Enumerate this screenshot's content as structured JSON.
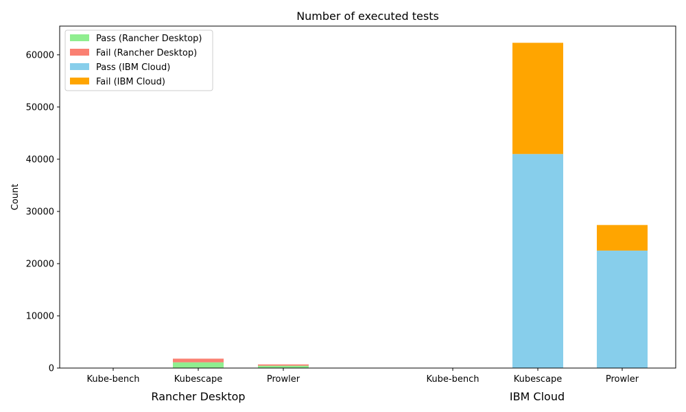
{
  "chart_data": {
    "type": "bar",
    "stacked": true,
    "title": "Number of executed tests",
    "xlabel": "",
    "ylabel": "Count",
    "ylim": [
      0,
      65500
    ],
    "yticks": [
      0,
      10000,
      20000,
      30000,
      40000,
      50000,
      60000
    ],
    "grid": false,
    "legend_position": "top-left",
    "groups": [
      {
        "label": "Rancher Desktop",
        "categories": [
          "Kube-bench",
          "Kubescape",
          "Prowler"
        ],
        "series": [
          {
            "name": "Pass (Rancher Desktop)",
            "color": "#90ee90",
            "values": [
              0,
              1100,
              450
            ]
          },
          {
            "name": "Fail (Rancher Desktop)",
            "color": "#fa8072",
            "values": [
              0,
              700,
              250
            ]
          }
        ]
      },
      {
        "label": "IBM Cloud",
        "categories": [
          "Kube-bench",
          "Kubescape",
          "Prowler"
        ],
        "series": [
          {
            "name": "Pass (IBM Cloud)",
            "color": "#87ceeb",
            "values": [
              0,
              41000,
              22500
            ]
          },
          {
            "name": "Fail (IBM Cloud)",
            "color": "#ffa500",
            "values": [
              0,
              21300,
              4900
            ]
          }
        ]
      }
    ]
  }
}
